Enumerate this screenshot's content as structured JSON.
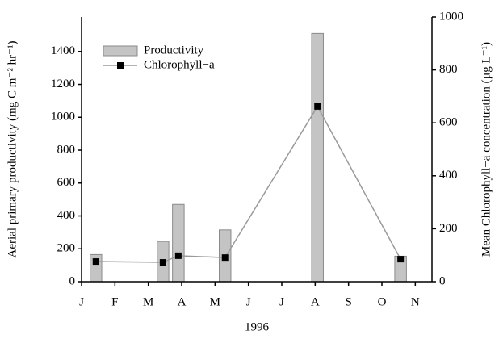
{
  "chart_data": {
    "type": "bar_line",
    "x_label": "1996",
    "y_label": "Aerial primary productivity (mg C m⁻² hr⁻¹)",
    "y2_label": "Mean Chlorophyll−a concentration (µg L⁻¹)",
    "x": [
      0.43,
      2.44,
      2.9,
      4.3,
      7.07,
      9.56
    ],
    "xlim": [
      0,
      10.5
    ],
    "xticks": [
      {
        "value": 0,
        "label": "J"
      },
      {
        "value": 1,
        "label": "F"
      },
      {
        "value": 2,
        "label": "M"
      },
      {
        "value": 3,
        "label": "A"
      },
      {
        "value": 4,
        "label": "M"
      },
      {
        "value": 5,
        "label": "J"
      },
      {
        "value": 6,
        "label": "J"
      },
      {
        "value": 7,
        "label": "A"
      },
      {
        "value": 8,
        "label": "S"
      },
      {
        "value": 9,
        "label": "O"
      },
      {
        "value": 10,
        "label": "N"
      }
    ],
    "ylim": [
      0,
      1610
    ],
    "yticks": [
      0,
      200,
      400,
      600,
      800,
      1000,
      1200,
      1400
    ],
    "y2lim": [
      0,
      1000
    ],
    "y2ticks": [
      0,
      200,
      400,
      600,
      800,
      1000
    ],
    "legend": "upper left",
    "series": [
      {
        "name": "Productivity",
        "type": "bar",
        "color": "#c4c4c4",
        "values": [
          165,
          245,
          470,
          315,
          1510,
          155
        ]
      },
      {
        "name": "Chlorophyll−a",
        "type": "line",
        "axis": "y2",
        "color": "#9a9a9a",
        "marker_color": "#000000",
        "values": [
          76,
          73,
          98,
          91,
          662,
          85
        ]
      }
    ]
  }
}
